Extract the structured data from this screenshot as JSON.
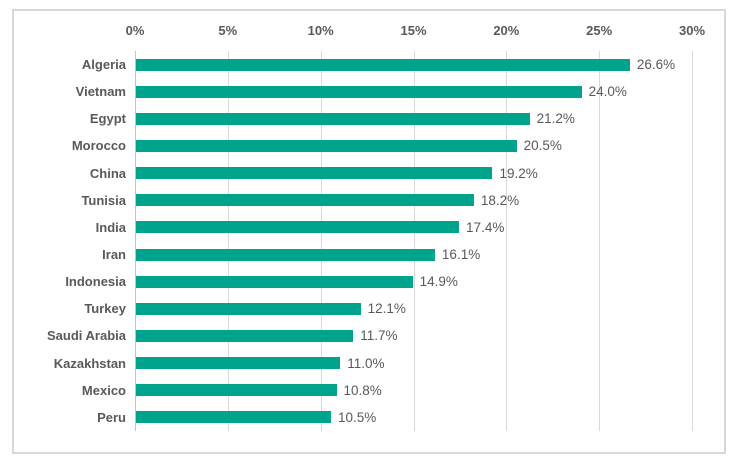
{
  "chart_data": {
    "type": "bar",
    "orientation": "horizontal",
    "title": "",
    "xlabel": "",
    "ylabel": "",
    "categories": [
      "Algeria",
      "Vietnam",
      "Egypt",
      "Morocco",
      "China",
      "Tunisia",
      "India",
      "Iran",
      "Indonesia",
      "Turkey",
      "Saudi Arabia",
      "Kazakhstan",
      "Mexico",
      "Peru"
    ],
    "values": [
      26.6,
      24.0,
      21.2,
      20.5,
      19.2,
      18.2,
      17.4,
      16.1,
      14.9,
      12.1,
      11.7,
      11.0,
      10.8,
      10.5
    ],
    "data_labels": [
      "26.6%",
      "24.0%",
      "21.2%",
      "20.5%",
      "19.2%",
      "18.2%",
      "17.4%",
      "16.1%",
      "14.9%",
      "12.1%",
      "11.7%",
      "11.0%",
      "10.8%",
      "10.5%"
    ],
    "x_axis": {
      "position": "top",
      "min": 0,
      "max": 30,
      "tick_values": [
        0,
        5,
        10,
        15,
        20,
        25,
        30
      ],
      "ticks": [
        "0%",
        "5%",
        "10%",
        "15%",
        "20%",
        "25%",
        "30%"
      ]
    },
    "grid": true,
    "legend": null,
    "colors": {
      "bar": "#00A38B",
      "text": "#595959",
      "gridline": "#D9D9D9",
      "zero_axis": "#C3C3C3",
      "frame_border": "#D8D8D8",
      "background": "#FFFFFF"
    }
  }
}
